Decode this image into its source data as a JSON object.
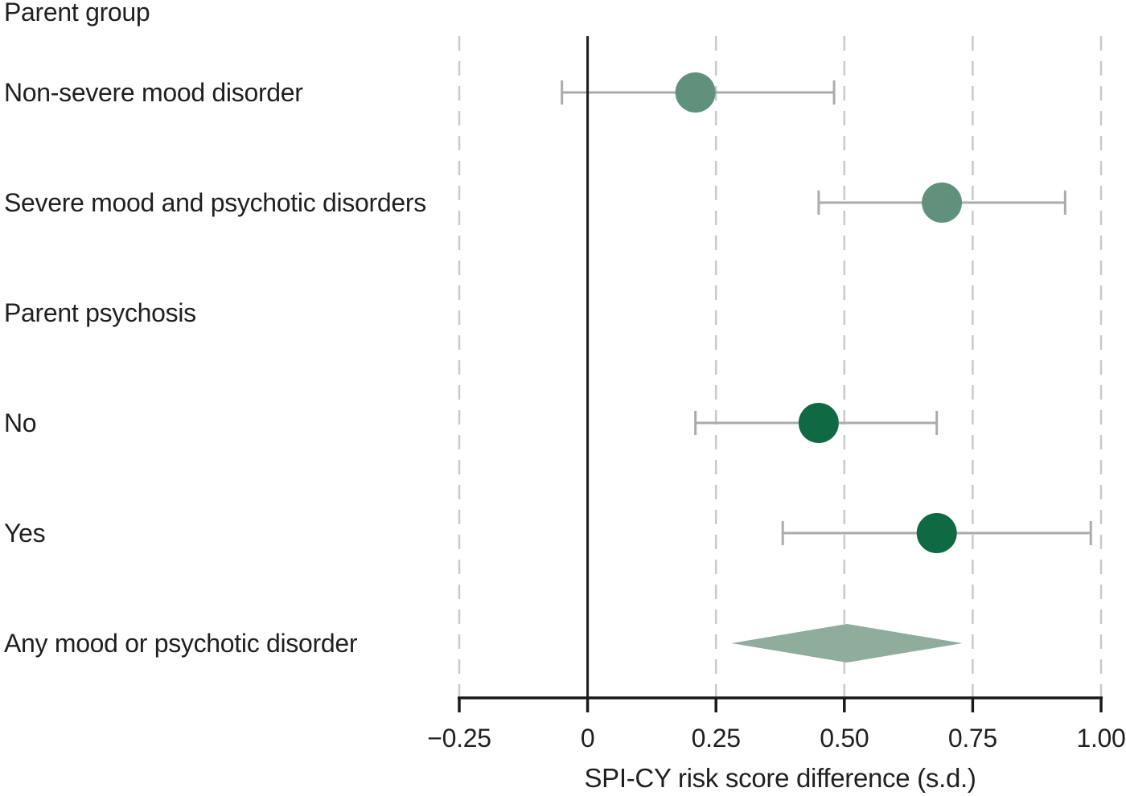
{
  "chart_data": {
    "type": "forest",
    "xlabel": "SPI-CY risk score difference (s.d.)",
    "xlim": [
      -0.25,
      1.0
    ],
    "grid_on": true,
    "legend": "none",
    "zero_line": 0,
    "gridlines": [
      -0.25,
      0.25,
      0.5,
      0.75,
      1.0
    ],
    "x_ticks": [
      {
        "value": -0.25,
        "label": "−0.25"
      },
      {
        "value": 0,
        "label": "0"
      },
      {
        "value": 0.25,
        "label": "0.25"
      },
      {
        "value": 0.5,
        "label": "0.50"
      },
      {
        "value": 0.75,
        "label": "0.75"
      },
      {
        "value": 1.0,
        "label": "1.00"
      }
    ],
    "rows": [
      {
        "type": "heading",
        "label": "Parent group"
      },
      {
        "type": "point",
        "label": "Non-severe mood disorder",
        "estimate": 0.21,
        "ci_low": -0.05,
        "ci_high": 0.48,
        "color": "subgroup_light"
      },
      {
        "type": "point",
        "label": "Severe mood and psychotic disorders",
        "estimate": 0.69,
        "ci_low": 0.45,
        "ci_high": 0.93,
        "color": "subgroup_light"
      },
      {
        "type": "heading",
        "label": "Parent psychosis"
      },
      {
        "type": "point",
        "label": "No",
        "estimate": 0.45,
        "ci_low": 0.21,
        "ci_high": 0.68,
        "color": "subgroup_dark"
      },
      {
        "type": "point",
        "label": "Yes",
        "estimate": 0.68,
        "ci_low": 0.38,
        "ci_high": 0.98,
        "color": "subgroup_dark"
      },
      {
        "type": "summary",
        "label": "Any mood or psychotic disorder",
        "estimate": 0.5,
        "ci_low": 0.28,
        "ci_high": 0.73,
        "color": "summary_diamond"
      }
    ],
    "colors": {
      "subgroup_light": "#5F917D",
      "subgroup_dark": "#0F6A44",
      "summary_diamond": "#8FAC9D",
      "error_bar": "#ABABAB",
      "gridline": "#C9C9C9",
      "axis": "#1A1A1A",
      "text": "#231F20"
    }
  }
}
